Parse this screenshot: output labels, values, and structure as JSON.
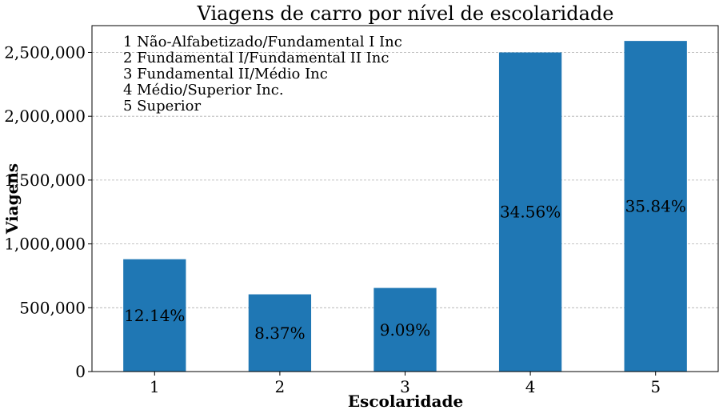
{
  "chart_data": {
    "type": "bar",
    "title": "Viagens de carro por nível de escolaridade",
    "xlabel": "Escolaridade",
    "ylabel": "Viagens",
    "categories": [
      "1",
      "2",
      "3",
      "4",
      "5"
    ],
    "values": [
      880000,
      605000,
      655000,
      2500000,
      2590000
    ],
    "data_labels": [
      "12.14%",
      "8.37%",
      "9.09%",
      "34.56%",
      "35.84%"
    ],
    "ylim": [
      0,
      2710000
    ],
    "yticks": [
      0,
      500000,
      1000000,
      1500000,
      2000000,
      2500000
    ],
    "ytick_labels": [
      "0",
      "500,000",
      "1,000,000",
      "1,500,000",
      "2,000,000",
      "2,500,000"
    ],
    "grid": "horizontal dashed",
    "bar_color": "#1f77b4",
    "annotation_lines": [
      "1 Não-Alfabetizado/Fundamental I Inc",
      "2 Fundamental I/Fundamental II Inc",
      "3 Fundamental II/Médio Inc",
      "4 Médio/Superior Inc.",
      "5 Superior"
    ]
  }
}
